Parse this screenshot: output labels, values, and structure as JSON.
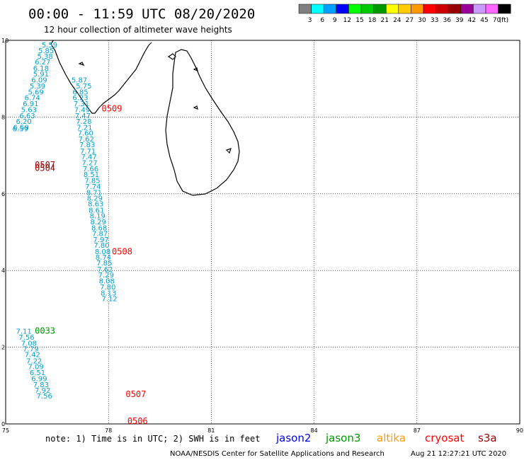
{
  "header": {
    "title": "00:00 - 11:59 UTC 08/20/2020",
    "subtitle": "12 hour collection of altimeter wave heights"
  },
  "color_scale": {
    "unit": "(ft)",
    "bins": [
      {
        "label": "3",
        "color": "#808080"
      },
      {
        "label": "6",
        "color": "#00ffff"
      },
      {
        "label": "9",
        "color": "#00a0ff"
      },
      {
        "label": "12",
        "color": "#0000ff"
      },
      {
        "label": "15",
        "color": "#00ff00"
      },
      {
        "label": "18",
        "color": "#00cc00"
      },
      {
        "label": "21",
        "color": "#009900"
      },
      {
        "label": "24",
        "color": "#ffff00"
      },
      {
        "label": "27",
        "color": "#ffcc00"
      },
      {
        "label": "30",
        "color": "#ff9900"
      },
      {
        "label": "33",
        "color": "#ff0000"
      },
      {
        "label": "36",
        "color": "#cc0000"
      },
      {
        "label": "39",
        "color": "#990000"
      },
      {
        "label": "42",
        "color": "#990099"
      },
      {
        "label": "45",
        "color": "#cc99ff"
      },
      {
        "label": "70",
        "color": "#ff66ff"
      },
      {
        "label": "",
        "color": "#000000"
      }
    ]
  },
  "map": {
    "x_ticks": [
      "75",
      "78",
      "81",
      "84",
      "87",
      "90"
    ],
    "y_ticks": [
      "10",
      "8",
      "6",
      "4",
      "2",
      "0"
    ],
    "lon_range": [
      75,
      90
    ],
    "lat_range": [
      0,
      10
    ],
    "grid": "dotted"
  },
  "track_labels": [
    {
      "text": "0509",
      "lon": 77.8,
      "lat": 8.15,
      "color": "#ff0000"
    },
    {
      "text": "0507",
      "lon": 75.85,
      "lat": 6.68,
      "color": "#990000"
    },
    {
      "text": "0504",
      "lon": 75.85,
      "lat": 6.6,
      "color": "#990000"
    },
    {
      "text": "0508",
      "lon": 78.1,
      "lat": 4.42,
      "color": "#ff0000"
    },
    {
      "text": "0033",
      "lon": 75.85,
      "lat": 2.35,
      "color": "#009900"
    },
    {
      "text": "0507",
      "lon": 78.5,
      "lat": 0.7,
      "color": "#ff0000"
    },
    {
      "text": "0506",
      "lon": 78.55,
      "lat": 0.0,
      "color": "#ff0000"
    }
  ],
  "wave_heights": [
    {
      "v": "5.59",
      "lon": 76.05,
      "lat": 9.82
    },
    {
      "v": "5.85",
      "lon": 75.95,
      "lat": 9.67
    },
    {
      "v": "5.38",
      "lon": 75.92,
      "lat": 9.52
    },
    {
      "v": "6.27",
      "lon": 75.85,
      "lat": 9.37
    },
    {
      "v": "6.18",
      "lon": 75.8,
      "lat": 9.21
    },
    {
      "v": "5.91",
      "lon": 75.8,
      "lat": 9.06
    },
    {
      "v": "6.09",
      "lon": 75.75,
      "lat": 8.9
    },
    {
      "v": "5.39",
      "lon": 75.7,
      "lat": 8.75
    },
    {
      "v": "5.69",
      "lon": 75.65,
      "lat": 8.59
    },
    {
      "v": "6.74",
      "lon": 75.55,
      "lat": 8.44
    },
    {
      "v": "6.91",
      "lon": 75.5,
      "lat": 8.28
    },
    {
      "v": "5.63",
      "lon": 75.45,
      "lat": 8.13
    },
    {
      "v": "6.63",
      "lon": 75.4,
      "lat": 7.97
    },
    {
      "v": "6.20",
      "lon": 75.3,
      "lat": 7.82
    },
    {
      "v": "6.59",
      "lon": 75.22,
      "lat": 7.67
    },
    {
      "v": "6.59",
      "lon": 75.2,
      "lat": 7.63
    },
    {
      "v": "5.87",
      "lon": 76.92,
      "lat": 8.9
    },
    {
      "v": "5.75",
      "lon": 77.05,
      "lat": 8.75
    },
    {
      "v": "6.85",
      "lon": 76.95,
      "lat": 8.59
    },
    {
      "v": "6.23",
      "lon": 76.95,
      "lat": 8.44
    },
    {
      "v": "7.31",
      "lon": 76.98,
      "lat": 8.28
    },
    {
      "v": "7.49",
      "lon": 77.0,
      "lat": 8.13
    },
    {
      "v": "7.47",
      "lon": 77.02,
      "lat": 7.97
    },
    {
      "v": "7.28",
      "lon": 77.05,
      "lat": 7.82
    },
    {
      "v": "7.21",
      "lon": 77.07,
      "lat": 7.67
    },
    {
      "v": "7.60",
      "lon": 77.1,
      "lat": 7.52
    },
    {
      "v": "7.62",
      "lon": 77.12,
      "lat": 7.36
    },
    {
      "v": "7.83",
      "lon": 77.15,
      "lat": 7.21
    },
    {
      "v": "7.71",
      "lon": 77.17,
      "lat": 7.05
    },
    {
      "v": "7.47",
      "lon": 77.2,
      "lat": 6.9
    },
    {
      "v": "7.27",
      "lon": 77.22,
      "lat": 6.74
    },
    {
      "v": "7.66",
      "lon": 77.25,
      "lat": 6.59
    },
    {
      "v": "8.51",
      "lon": 77.27,
      "lat": 6.44
    },
    {
      "v": "7.85",
      "lon": 77.3,
      "lat": 6.28
    },
    {
      "v": "7.74",
      "lon": 77.32,
      "lat": 6.13
    },
    {
      "v": "8.71",
      "lon": 77.35,
      "lat": 5.97
    },
    {
      "v": "8.29",
      "lon": 77.37,
      "lat": 5.82
    },
    {
      "v": "8.63",
      "lon": 77.4,
      "lat": 5.67
    },
    {
      "v": "8.61",
      "lon": 77.42,
      "lat": 5.51
    },
    {
      "v": "8.19",
      "lon": 77.45,
      "lat": 5.36
    },
    {
      "v": "8.29",
      "lon": 77.47,
      "lat": 5.2
    },
    {
      "v": "8.68",
      "lon": 77.5,
      "lat": 5.05
    },
    {
      "v": "7.87",
      "lon": 77.52,
      "lat": 4.9
    },
    {
      "v": "7.97",
      "lon": 77.55,
      "lat": 4.74
    },
    {
      "v": "7.80",
      "lon": 77.57,
      "lat": 4.59
    },
    {
      "v": "8.08",
      "lon": 77.6,
      "lat": 4.43
    },
    {
      "v": "8.74",
      "lon": 77.62,
      "lat": 4.28
    },
    {
      "v": "7.85",
      "lon": 77.65,
      "lat": 4.13
    },
    {
      "v": "7.62",
      "lon": 77.67,
      "lat": 3.97
    },
    {
      "v": "7.29",
      "lon": 77.7,
      "lat": 3.82
    },
    {
      "v": "8.08",
      "lon": 77.72,
      "lat": 3.66
    },
    {
      "v": "7.80",
      "lon": 77.75,
      "lat": 3.51
    },
    {
      "v": "8.13",
      "lon": 77.77,
      "lat": 3.35
    },
    {
      "v": "7.12",
      "lon": 77.8,
      "lat": 3.2
    },
    {
      "v": "7.11",
      "lon": 75.3,
      "lat": 2.35
    },
    {
      "v": "7.56",
      "lon": 75.38,
      "lat": 2.2
    },
    {
      "v": "7.08",
      "lon": 75.45,
      "lat": 2.04
    },
    {
      "v": "7.79",
      "lon": 75.5,
      "lat": 1.89
    },
    {
      "v": "7.42",
      "lon": 75.55,
      "lat": 1.74
    },
    {
      "v": "7.22",
      "lon": 75.6,
      "lat": 1.58
    },
    {
      "v": "7.09",
      "lon": 75.65,
      "lat": 1.43
    },
    {
      "v": "6.51",
      "lon": 75.7,
      "lat": 1.27
    },
    {
      "v": "6.99",
      "lon": 75.75,
      "lat": 1.12
    },
    {
      "v": "7.83",
      "lon": 75.8,
      "lat": 0.96
    },
    {
      "v": "7.92",
      "lon": 75.85,
      "lat": 0.81
    },
    {
      "v": "7.56",
      "lon": 75.9,
      "lat": 0.66
    }
  ],
  "legend": {
    "note": "note: 1) Time is in UTC; 2) SWH is in feet",
    "satellites": [
      {
        "name": "jason2",
        "color": "#0000ff"
      },
      {
        "name": "jason3",
        "color": "#009900"
      },
      {
        "name": "altika",
        "color": "#ff9900"
      },
      {
        "name": "cryosat",
        "color": "#ff0000"
      },
      {
        "name": "s3a",
        "color": "#990000"
      }
    ]
  },
  "footer": {
    "credit": "NOAA/NESDIS Center for Satellite Applications and Research",
    "timestamp": "Aug 21 12:27:21 UTC 2020"
  }
}
